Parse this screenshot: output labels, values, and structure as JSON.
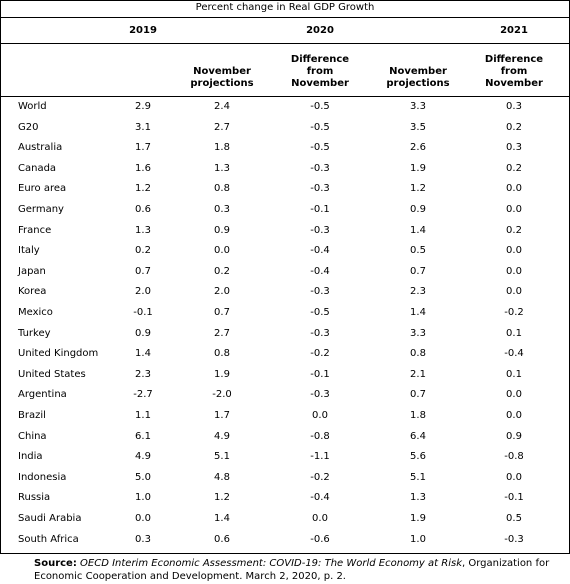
{
  "table": {
    "title": "Percent change in Real GDP Growth",
    "years": [
      "2019",
      "2020",
      "2021"
    ],
    "subheaders": [
      "November projections",
      "Difference from November",
      "November projections",
      "Difference from November"
    ],
    "rows": [
      [
        "World",
        "2.9",
        "2.4",
        "-0.5",
        "3.3",
        "0.3"
      ],
      [
        "G20",
        "3.1",
        "2.7",
        "-0.5",
        "3.5",
        "0.2"
      ],
      [
        "Australia",
        "1.7",
        "1.8",
        "-0.5",
        "2.6",
        "0.3"
      ],
      [
        "Canada",
        "1.6",
        "1.3",
        "-0.3",
        "1.9",
        "0.2"
      ],
      [
        "Euro area",
        "1.2",
        "0.8",
        "-0.3",
        "1.2",
        "0.0"
      ],
      [
        "Germany",
        "0.6",
        "0.3",
        "-0.1",
        "0.9",
        "0.0"
      ],
      [
        "France",
        "1.3",
        "0.9",
        "-0.3",
        "1.4",
        "0.2"
      ],
      [
        "Italy",
        "0.2",
        "0.0",
        "-0.4",
        "0.5",
        "0.0"
      ],
      [
        "Japan",
        "0.7",
        "0.2",
        "-0.4",
        "0.7",
        "0.0"
      ],
      [
        "Korea",
        "2.0",
        "2.0",
        "-0.3",
        "2.3",
        "0.0"
      ],
      [
        "Mexico",
        "-0.1",
        "0.7",
        "-0.5",
        "1.4",
        "-0.2"
      ],
      [
        "Turkey",
        "0.9",
        "2.7",
        "-0.3",
        "3.3",
        "0.1"
      ],
      [
        "United Kingdom",
        "1.4",
        "0.8",
        "-0.2",
        "0.8",
        "-0.4"
      ],
      [
        "United States",
        "2.3",
        "1.9",
        "-0.1",
        "2.1",
        "0.1"
      ],
      [
        "Argentina",
        "-2.7",
        "-2.0",
        "-0.3",
        "0.7",
        "0.0"
      ],
      [
        "Brazil",
        "1.1",
        "1.7",
        "0.0",
        "1.8",
        "0.0"
      ],
      [
        "China",
        "6.1",
        "4.9",
        "-0.8",
        "6.4",
        "0.9"
      ],
      [
        "India",
        "4.9",
        "5.1",
        "-1.1",
        "5.6",
        "-0.8"
      ],
      [
        "Indonesia",
        "5.0",
        "4.8",
        "-0.2",
        "5.1",
        "0.0"
      ],
      [
        "Russia",
        "1.0",
        "1.2",
        "-0.4",
        "1.3",
        "-0.1"
      ],
      [
        "Saudi Arabia",
        "0.0",
        "1.4",
        "0.0",
        "1.9",
        "0.5"
      ],
      [
        "South Africa",
        "0.3",
        "0.6",
        "-0.6",
        "1.0",
        "-0.3"
      ]
    ]
  },
  "source": {
    "label": "Source:",
    "title": "OECD Interim Economic Assessment: COVID-19: The World Economy at Risk",
    "rest": ", Organization for Economic Cooperation and Development. March 2, 2020, p. 2."
  }
}
